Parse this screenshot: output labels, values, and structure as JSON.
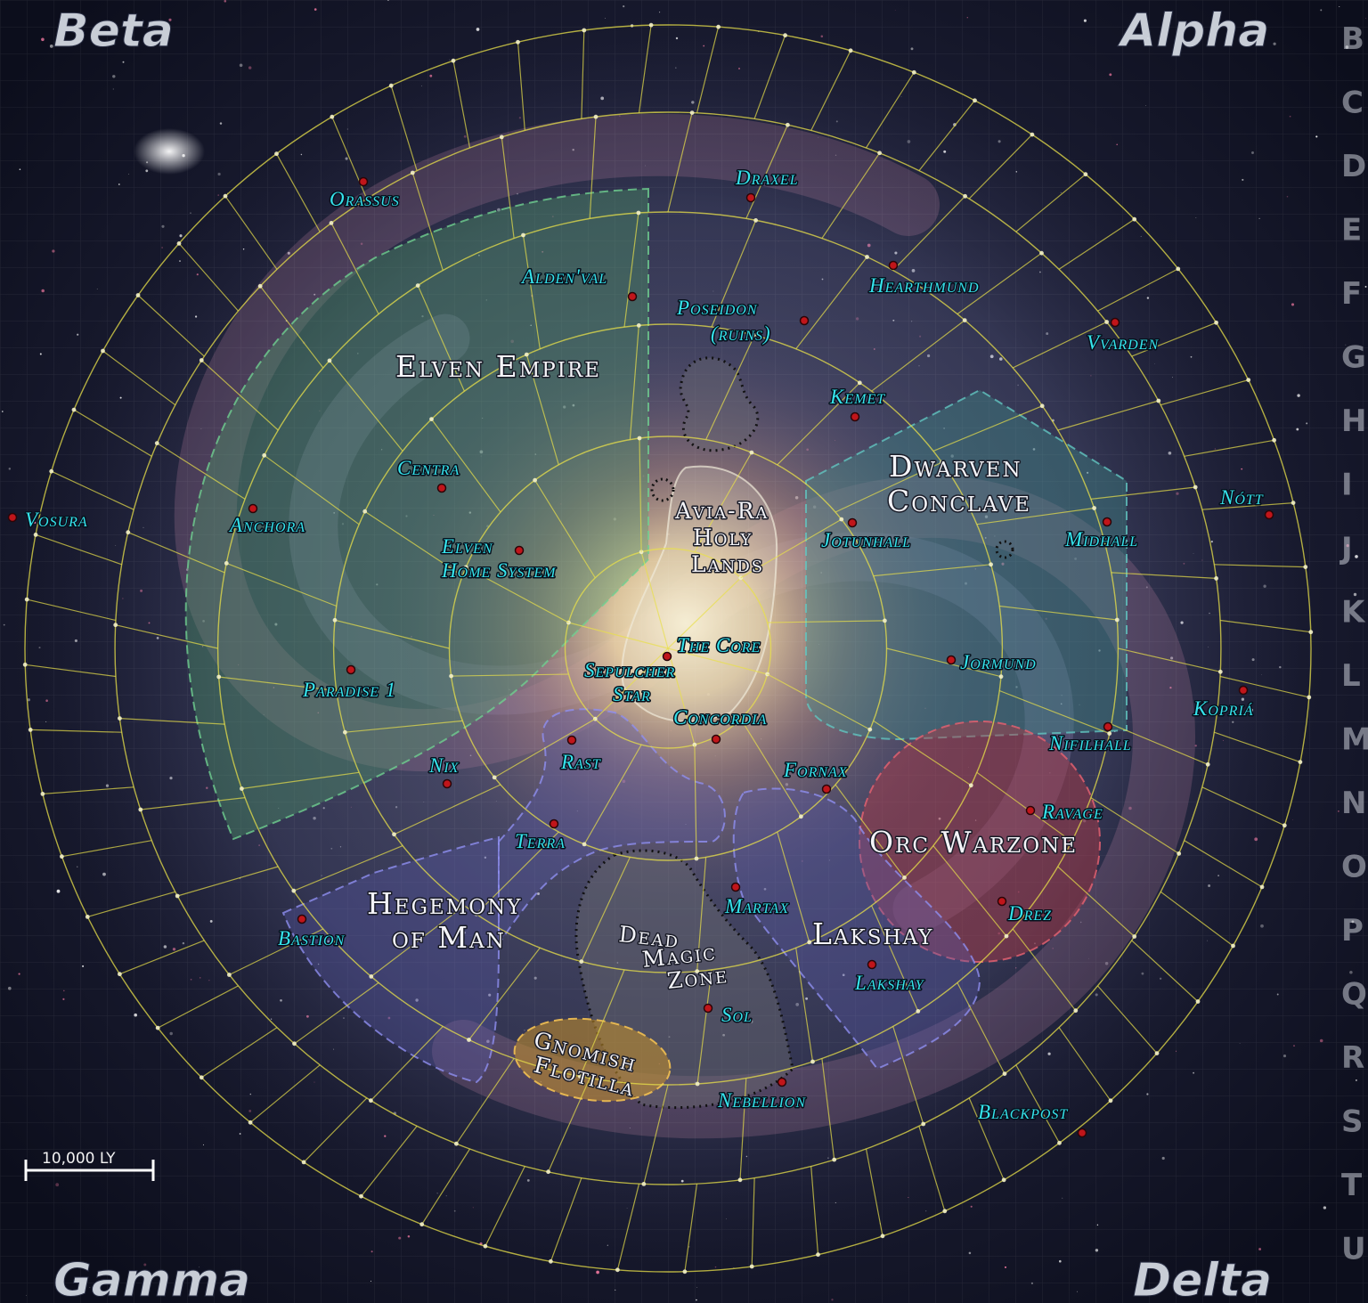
{
  "quadrants": {
    "top_left": "Beta",
    "top_right": "Alpha",
    "bottom_left": "Gamma",
    "bottom_right": "Delta"
  },
  "row_labels": [
    "B",
    "C",
    "D",
    "E",
    "F",
    "G",
    "H",
    "I",
    "J",
    "K",
    "L",
    "M",
    "N",
    "O",
    "P",
    "Q",
    "R",
    "S",
    "T",
    "U"
  ],
  "scale_bar": "10,000 LY",
  "colors": {
    "background": "#0b0d1a",
    "grid_lines": "#e8e04a",
    "star_labels": "#35e4ec",
    "star_dots": "#c0151a",
    "elven_empire": "#4f9a68",
    "dwarven_conclave": "#3f8f8a",
    "orc_warzone": "#b33a44",
    "hegemony_of_man": "#5a5aa8",
    "lakshay": "#5a5aa8",
    "gnomish_flotilla": "#c9922a"
  },
  "regions": {
    "elven_empire": "Elven Empire",
    "dwarven_conclave": [
      "Dwarven",
      "Conclave"
    ],
    "avia_ra": [
      "Avia-Ra",
      "Holy",
      "Lands"
    ],
    "hegemony": [
      "Hegemony",
      "of Man"
    ],
    "dead_magic": [
      "Dead",
      "Magic",
      "Zone"
    ],
    "gnomish": [
      "Gnomish",
      "Flotilla"
    ],
    "lakshay": "Lakshay",
    "orc_warzone": "Orc Warzone"
  },
  "systems": {
    "orassus": "Orassus",
    "draxel": "Draxel",
    "aldenval": "Alden'val",
    "poseidon": [
      "Poseidon",
      "(ruins)"
    ],
    "hearthmund": "Hearthmund",
    "vvarden": "Vvarden",
    "kemet": "Kemet",
    "centra": "Centra",
    "vosura": "Vosura",
    "anchora": "Anchora",
    "elven_home": [
      "Elven",
      "Home System"
    ],
    "jotunhall": "Jotunhall",
    "midhall": "Midhall",
    "nott": "Nótt",
    "the_core": "The Core",
    "sepulcher": [
      "Sepulcher",
      "Star"
    ],
    "jormund": "Jormund",
    "paradise": "Paradise 1",
    "kopria": "Kopriá",
    "concordia": "Concordia",
    "nifilhall": "Nifilhall",
    "rast": "Rast",
    "nix": "Nix",
    "fornax": "Fornax",
    "ravage": "Ravage",
    "terra": "Terra",
    "martax": "Martax",
    "drez": "Drez",
    "bastion": "Bastion",
    "lakshay": "Lakshay",
    "sol": "Sol",
    "nebellion": "Nebellion",
    "blackpost": "Blackpost"
  }
}
